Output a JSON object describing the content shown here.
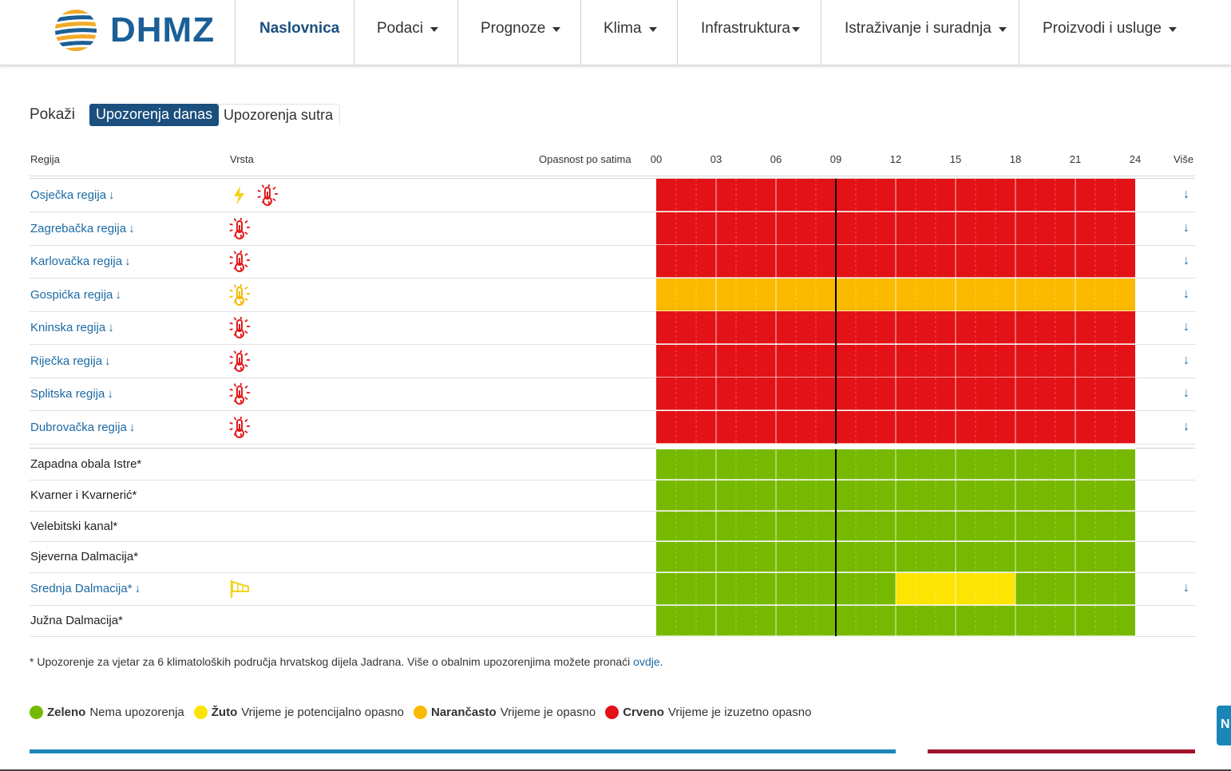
{
  "header": {
    "logo_text": "DHMZ",
    "nav": [
      {
        "label": "Naslovnica",
        "dropdown": false,
        "active": true
      },
      {
        "label": "Podaci",
        "dropdown": true
      },
      {
        "label": "Prognoze",
        "dropdown": true
      },
      {
        "label": "Klima",
        "dropdown": true
      },
      {
        "label": "Infrastruktura",
        "dropdown": true
      },
      {
        "label": "Istraživanje i suradnja",
        "dropdown": true
      },
      {
        "label": "Proizvodi i usluge",
        "dropdown": true
      }
    ]
  },
  "toggle": {
    "label": "Pokaži",
    "options": [
      "Upozorenja danas",
      "Upozorenja sutra"
    ],
    "selected": "Upozorenja danas"
  },
  "table": {
    "col_region": "Regija",
    "col_type": "Vrsta",
    "col_hours": "Opasnost po satima",
    "col_more": "Više",
    "hour_labels": [
      "00",
      "03",
      "06",
      "09",
      "12",
      "15",
      "18",
      "21",
      "24"
    ],
    "current_hour": 9,
    "more_arrow": "↓",
    "regions": [
      {
        "name": "Osječka regija",
        "link": true,
        "icons": [
          "lightning-icon",
          "heat-icon"
        ],
        "icon_colors": [
          "#f1d31b",
          "#e31a1c"
        ],
        "hourly_level": [
          "red",
          "red",
          "red",
          "red",
          "red",
          "red",
          "red",
          "red",
          "red",
          "red",
          "red",
          "red",
          "red",
          "red",
          "red",
          "red",
          "red",
          "red",
          "red",
          "red",
          "red",
          "red",
          "red",
          "red"
        ]
      },
      {
        "name": "Zagrebačka regija",
        "link": true,
        "icons": [
          "heat-icon"
        ],
        "icon_colors": [
          "#e31a1c"
        ],
        "hourly_level": [
          "red",
          "red",
          "red",
          "red",
          "red",
          "red",
          "red",
          "red",
          "red",
          "red",
          "red",
          "red",
          "red",
          "red",
          "red",
          "red",
          "red",
          "red",
          "red",
          "red",
          "red",
          "red",
          "red",
          "red"
        ]
      },
      {
        "name": "Karlovačka regija",
        "link": true,
        "icons": [
          "heat-icon"
        ],
        "icon_colors": [
          "#e31a1c"
        ],
        "hourly_level": [
          "red",
          "red",
          "red",
          "red",
          "red",
          "red",
          "red",
          "red",
          "red",
          "red",
          "red",
          "red",
          "red",
          "red",
          "red",
          "red",
          "red",
          "red",
          "red",
          "red",
          "red",
          "red",
          "red",
          "red"
        ]
      },
      {
        "name": "Gospićka regija",
        "link": true,
        "icons": [
          "heat-icon"
        ],
        "icon_colors": [
          "#f6b802"
        ],
        "hourly_level": [
          "orange",
          "orange",
          "orange",
          "orange",
          "orange",
          "orange",
          "orange",
          "orange",
          "orange",
          "orange",
          "orange",
          "orange",
          "orange",
          "orange",
          "orange",
          "orange",
          "orange",
          "orange",
          "orange",
          "orange",
          "orange",
          "orange",
          "orange",
          "orange"
        ]
      },
      {
        "name": "Kninska regija",
        "link": true,
        "icons": [
          "heat-icon"
        ],
        "icon_colors": [
          "#e31a1c"
        ],
        "hourly_level": [
          "red",
          "red",
          "red",
          "red",
          "red",
          "red",
          "red",
          "red",
          "red",
          "red",
          "red",
          "red",
          "red",
          "red",
          "red",
          "red",
          "red",
          "red",
          "red",
          "red",
          "red",
          "red",
          "red",
          "red"
        ]
      },
      {
        "name": "Riječka regija",
        "link": true,
        "icons": [
          "heat-icon"
        ],
        "icon_colors": [
          "#e31a1c"
        ],
        "hourly_level": [
          "red",
          "red",
          "red",
          "red",
          "red",
          "red",
          "red",
          "red",
          "red",
          "red",
          "red",
          "red",
          "red",
          "red",
          "red",
          "red",
          "red",
          "red",
          "red",
          "red",
          "red",
          "red",
          "red",
          "red"
        ]
      },
      {
        "name": "Splitska regija",
        "link": true,
        "icons": [
          "heat-icon"
        ],
        "icon_colors": [
          "#e31a1c"
        ],
        "hourly_level": [
          "red",
          "red",
          "red",
          "red",
          "red",
          "red",
          "red",
          "red",
          "red",
          "red",
          "red",
          "red",
          "red",
          "red",
          "red",
          "red",
          "red",
          "red",
          "red",
          "red",
          "red",
          "red",
          "red",
          "red"
        ]
      },
      {
        "name": "Dubrovačka regija",
        "link": true,
        "icons": [
          "heat-icon"
        ],
        "icon_colors": [
          "#e31a1c"
        ],
        "hourly_level": [
          "red",
          "red",
          "red",
          "red",
          "red",
          "red",
          "red",
          "red",
          "red",
          "red",
          "red",
          "red",
          "red",
          "red",
          "red",
          "red",
          "red",
          "red",
          "red",
          "red",
          "red",
          "red",
          "red",
          "red"
        ]
      }
    ],
    "coastal": [
      {
        "name": "Zapadna obala Istre*",
        "link": false,
        "icons": [],
        "hourly_level": [
          "green",
          "green",
          "green",
          "green",
          "green",
          "green",
          "green",
          "green",
          "green",
          "green",
          "green",
          "green",
          "green",
          "green",
          "green",
          "green",
          "green",
          "green",
          "green",
          "green",
          "green",
          "green",
          "green",
          "green"
        ]
      },
      {
        "name": "Kvarner i Kvarnerić*",
        "link": false,
        "icons": [],
        "hourly_level": [
          "green",
          "green",
          "green",
          "green",
          "green",
          "green",
          "green",
          "green",
          "green",
          "green",
          "green",
          "green",
          "green",
          "green",
          "green",
          "green",
          "green",
          "green",
          "green",
          "green",
          "green",
          "green",
          "green",
          "green"
        ]
      },
      {
        "name": "Velebitski kanal*",
        "link": false,
        "icons": [],
        "hourly_level": [
          "green",
          "green",
          "green",
          "green",
          "green",
          "green",
          "green",
          "green",
          "green",
          "green",
          "green",
          "green",
          "green",
          "green",
          "green",
          "green",
          "green",
          "green",
          "green",
          "green",
          "green",
          "green",
          "green",
          "green"
        ]
      },
      {
        "name": "Sjeverna Dalmacija*",
        "link": false,
        "icons": [],
        "hourly_level": [
          "green",
          "green",
          "green",
          "green",
          "green",
          "green",
          "green",
          "green",
          "green",
          "green",
          "green",
          "green",
          "green",
          "green",
          "green",
          "green",
          "green",
          "green",
          "green",
          "green",
          "green",
          "green",
          "green",
          "green"
        ]
      },
      {
        "name": "Srednja Dalmacija*",
        "link": true,
        "icons": [
          "wind-icon"
        ],
        "icon_colors": [
          "#f1d31b"
        ],
        "hourly_level": [
          "green",
          "green",
          "green",
          "green",
          "green",
          "green",
          "green",
          "green",
          "green",
          "green",
          "green",
          "green",
          "yellow",
          "yellow",
          "yellow",
          "yellow",
          "yellow",
          "yellow",
          "green",
          "green",
          "green",
          "green",
          "green",
          "green"
        ]
      },
      {
        "name": "Južna Dalmacija*",
        "link": false,
        "icons": [],
        "hourly_level": [
          "green",
          "green",
          "green",
          "green",
          "green",
          "green",
          "green",
          "green",
          "green",
          "green",
          "green",
          "green",
          "green",
          "green",
          "green",
          "green",
          "green",
          "green",
          "green",
          "green",
          "green",
          "green",
          "green",
          "green"
        ]
      }
    ]
  },
  "footnote": {
    "text": "* Upozorenje za vjetar za 6 klimatoloških područja hrvatskog dijela Jadrana. Više o obalnim upozorenjima možete pronaći ",
    "link": "ovdje",
    "end": "."
  },
  "legend": [
    {
      "level": "green",
      "name": "Zeleno",
      "desc": "Nema upozorenja"
    },
    {
      "level": "yellow",
      "name": "Žuto",
      "desc": "Vrijeme je potencijalno opasno"
    },
    {
      "level": "orange",
      "name": "Narančasto",
      "desc": "Vrijeme je opasno"
    },
    {
      "level": "red",
      "name": "Crveno",
      "desc": "Vrijeme je izuzetno opasno"
    }
  ],
  "colors": {
    "green": "#77b900",
    "yellow": "#fde403",
    "orange": "#fbba00",
    "red": "#e31216",
    "link": "#1b6aa5",
    "brand": "#1b5f96"
  },
  "fab_label": "N"
}
